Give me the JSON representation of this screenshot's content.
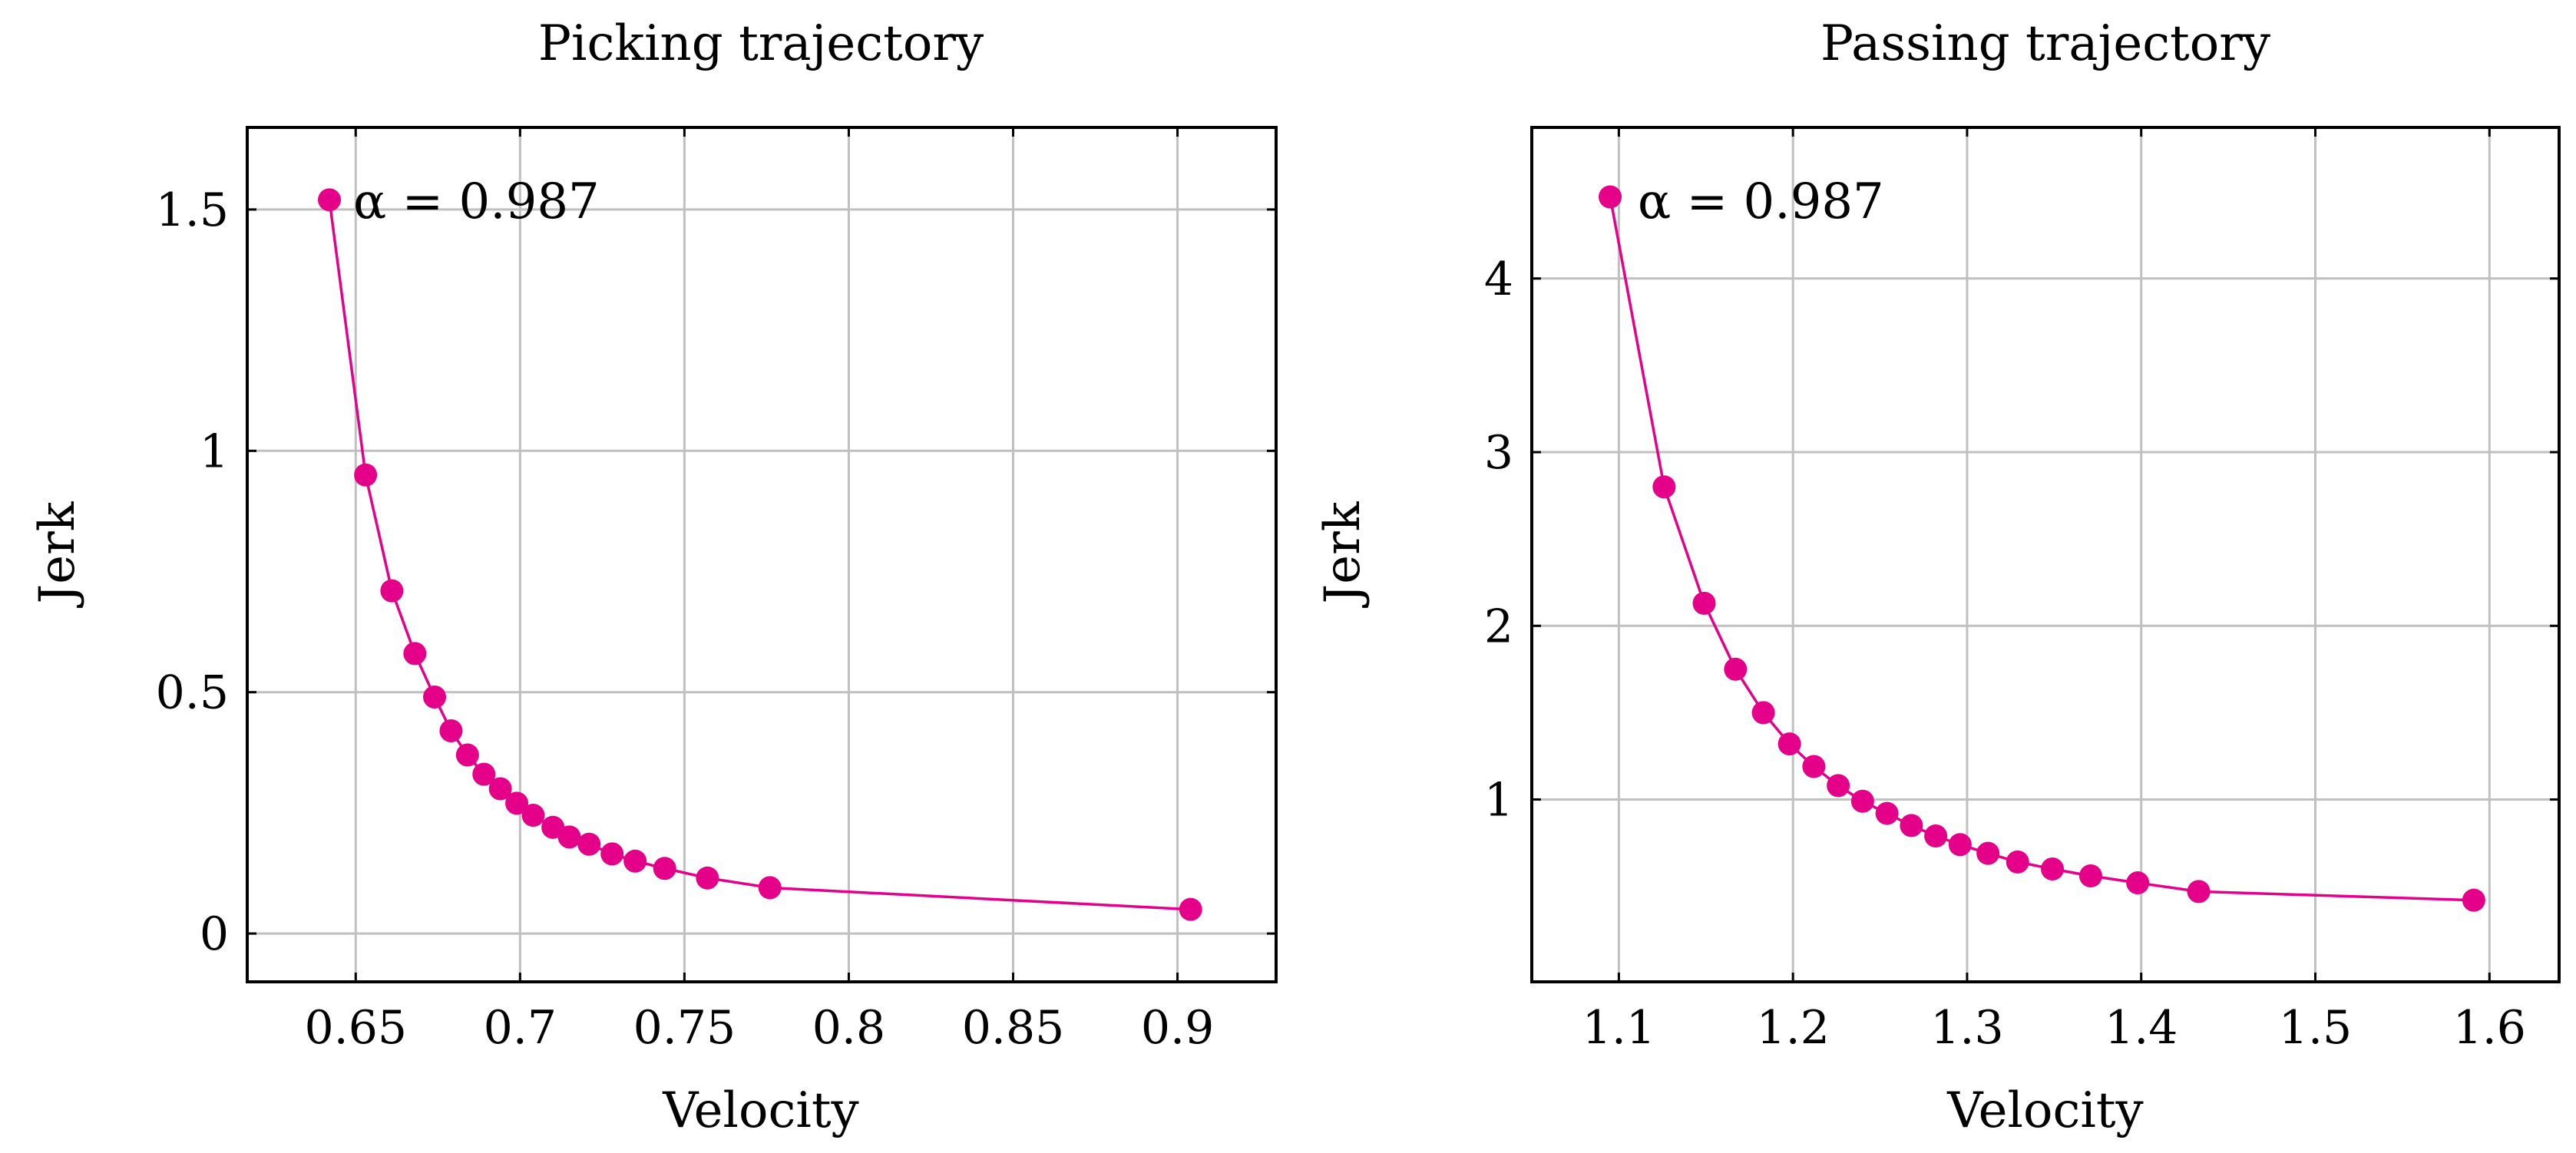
{
  "figure": {
    "background": "#ffffff",
    "series_color": "#e5008a",
    "grid_color": "#c0c0c0"
  },
  "chart_data": [
    {
      "type": "line",
      "title": "Picking trajectory",
      "xlabel": "Velocity",
      "ylabel": "Jerk",
      "xlim": [
        0.617,
        0.93
      ],
      "ylim": [
        -0.1,
        1.67
      ],
      "grid": true,
      "xticks": [
        0.65,
        0.7,
        0.75,
        0.8,
        0.85,
        0.9
      ],
      "xtick_labels": [
        "0.65",
        "0.7",
        "0.75",
        "0.8",
        "0.85",
        "0.9"
      ],
      "yticks": [
        0,
        0.5,
        1,
        1.5
      ],
      "ytick_labels": [
        "0",
        "0.5",
        "1",
        "1.5"
      ],
      "series": [
        {
          "name": "Picking trajectory",
          "marker": "circle",
          "points": [
            [
              0.642,
              1.52
            ],
            [
              0.653,
              0.95
            ],
            [
              0.661,
              0.71
            ],
            [
              0.668,
              0.58
            ],
            [
              0.674,
              0.49
            ],
            [
              0.679,
              0.42
            ],
            [
              0.684,
              0.37
            ],
            [
              0.689,
              0.33
            ],
            [
              0.694,
              0.3
            ],
            [
              0.699,
              0.27
            ],
            [
              0.704,
              0.245
            ],
            [
              0.71,
              0.22
            ],
            [
              0.715,
              0.2
            ],
            [
              0.721,
              0.185
            ],
            [
              0.728,
              0.165
            ],
            [
              0.735,
              0.15
            ],
            [
              0.744,
              0.135
            ],
            [
              0.757,
              0.115
            ],
            [
              0.776,
              0.095
            ],
            [
              0.904,
              0.05
            ]
          ]
        }
      ],
      "annotation": {
        "text": "α = 0.987",
        "at": [
          0.642,
          1.52
        ]
      }
    },
    {
      "type": "line",
      "title": "Passing trajectory",
      "xlabel": "Velocity",
      "ylabel": "Jerk",
      "xlim": [
        1.05,
        1.64
      ],
      "ylim": [
        -0.05,
        4.87
      ],
      "grid": true,
      "xticks": [
        1.1,
        1.2,
        1.3,
        1.4,
        1.5,
        1.6
      ],
      "xtick_labels": [
        "1.1",
        "1.2",
        "1.3",
        "1.4",
        "1.5",
        "1.6"
      ],
      "yticks": [
        1,
        2,
        3,
        4
      ],
      "ytick_labels": [
        "1",
        "2",
        "3",
        "4"
      ],
      "series": [
        {
          "name": "Passing trajectory",
          "marker": "circle",
          "points": [
            [
              1.095,
              4.47
            ],
            [
              1.126,
              2.8
            ],
            [
              1.149,
              2.13
            ],
            [
              1.167,
              1.75
            ],
            [
              1.183,
              1.5
            ],
            [
              1.198,
              1.32
            ],
            [
              1.212,
              1.19
            ],
            [
              1.226,
              1.08
            ],
            [
              1.24,
              0.99
            ],
            [
              1.254,
              0.92
            ],
            [
              1.268,
              0.85
            ],
            [
              1.282,
              0.79
            ],
            [
              1.296,
              0.74
            ],
            [
              1.312,
              0.69
            ],
            [
              1.329,
              0.64
            ],
            [
              1.349,
              0.6
            ],
            [
              1.371,
              0.56
            ],
            [
              1.398,
              0.52
            ],
            [
              1.433,
              0.47
            ],
            [
              1.591,
              0.42
            ]
          ]
        }
      ],
      "annotation": {
        "text": "α = 0.987",
        "at": [
          1.095,
          4.47
        ]
      }
    }
  ]
}
